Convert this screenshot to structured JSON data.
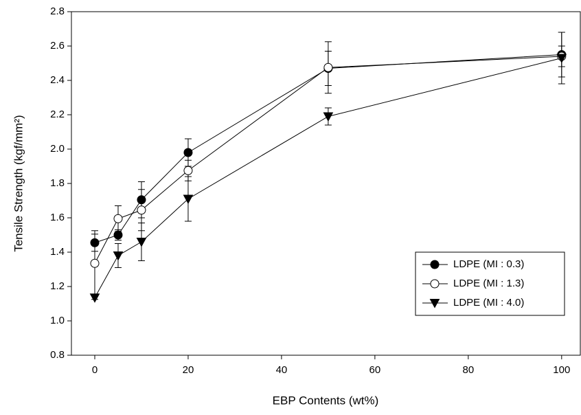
{
  "chart_data": {
    "type": "line",
    "x_label": "EBP Contents (wt%)",
    "y_label": "Tensile Strength (kgf/mm²)",
    "x": [
      0,
      5,
      10,
      20,
      50,
      100
    ],
    "series": [
      {
        "name": "LDPE (MI : 0.3)",
        "color": "#000000",
        "marker": "circle",
        "values": [
          1.455,
          1.5,
          1.705,
          1.98,
          2.47,
          2.55
        ],
        "errors": [
          0.05,
          0.03,
          0.105,
          0.08,
          0.1,
          0.13
        ]
      },
      {
        "name": "LDPE (MI : 1.3)",
        "color": "#000000",
        "marker": "open-circle",
        "values": [
          1.335,
          1.595,
          1.645,
          1.875,
          2.475,
          2.54
        ],
        "errors": [
          0.19,
          0.075,
          0.12,
          0.06,
          0.15,
          0.06
        ]
      },
      {
        "name": "LDPE (MI : 4.0)",
        "color": "#000000",
        "marker": "triangle-down",
        "values": [
          1.135,
          1.38,
          1.46,
          1.71,
          2.19,
          2.53
        ],
        "errors": [
          0.01,
          0.07,
          0.11,
          0.13,
          0.05,
          0.15
        ]
      }
    ],
    "xlim": [
      -5,
      104
    ],
    "xticks": [
      0,
      20,
      40,
      60,
      80,
      100
    ],
    "ylim": [
      0.8,
      2.8
    ],
    "yticks": [
      0.8,
      {
        "value": 1,
        "label": "1.0"
      },
      1.2,
      1.4,
      1.6,
      1.8,
      {
        "value": 2,
        "label": "2.0"
      },
      2.2,
      2.4,
      2.6,
      2.8
    ],
    "legend": "lower right"
  }
}
